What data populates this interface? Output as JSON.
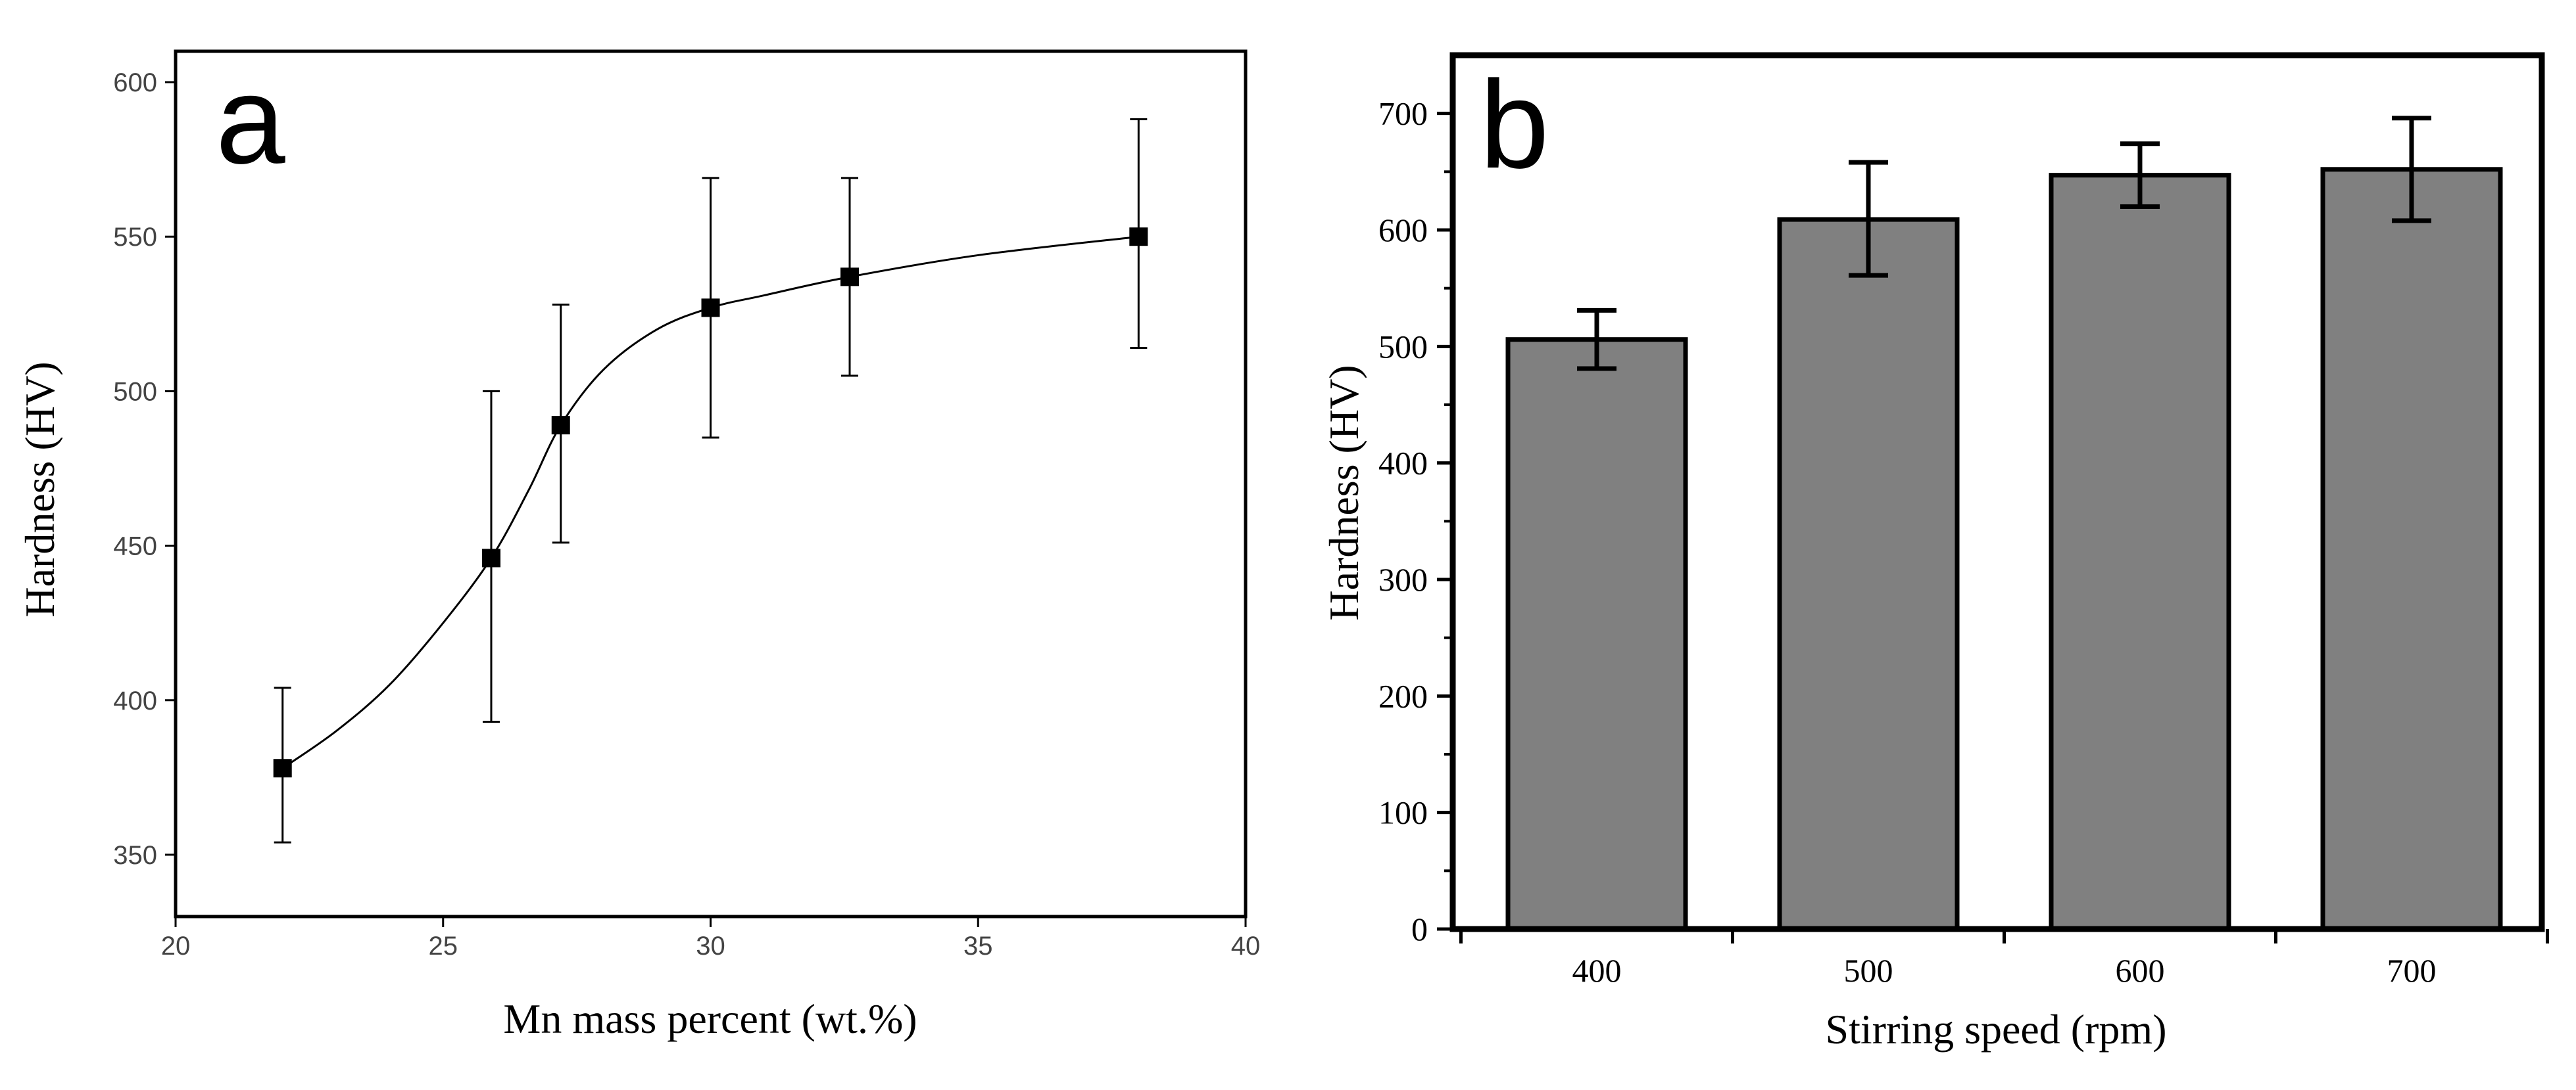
{
  "chart_data": [
    {
      "panel_label": "a",
      "type": "scatter",
      "xlabel": "Mn mass percent (wt.%)",
      "ylabel": "Hardness (HV)",
      "xlim": [
        20,
        40
      ],
      "ylim": [
        330,
        610
      ],
      "xticks": [
        20,
        25,
        30,
        35,
        40
      ],
      "yticks": [
        350,
        400,
        450,
        500,
        550,
        600
      ],
      "grid": false,
      "fitted_curve": true,
      "points": [
        {
          "x": 22.0,
          "y": 378,
          "err_low": 354,
          "err_high": 404
        },
        {
          "x": 25.9,
          "y": 446,
          "err_low": 393,
          "err_high": 500
        },
        {
          "x": 27.2,
          "y": 489,
          "err_low": 451,
          "err_high": 528
        },
        {
          "x": 30.0,
          "y": 527,
          "err_low": 485,
          "err_high": 569
        },
        {
          "x": 32.6,
          "y": 537,
          "err_low": 505,
          "err_high": 569
        },
        {
          "x": 38.0,
          "y": 550,
          "err_low": 514,
          "err_high": 588
        }
      ],
      "curve": [
        {
          "x": 22.0,
          "y": 378
        },
        {
          "x": 23.0,
          "y": 390
        },
        {
          "x": 24.0,
          "y": 405
        },
        {
          "x": 25.0,
          "y": 425
        },
        {
          "x": 25.9,
          "y": 446
        },
        {
          "x": 26.6,
          "y": 468
        },
        {
          "x": 27.2,
          "y": 489
        },
        {
          "x": 28.0,
          "y": 507
        },
        {
          "x": 29.0,
          "y": 520
        },
        {
          "x": 30.0,
          "y": 527
        },
        {
          "x": 31.0,
          "y": 531
        },
        {
          "x": 32.6,
          "y": 537
        },
        {
          "x": 35.0,
          "y": 544
        },
        {
          "x": 38.0,
          "y": 550
        }
      ]
    },
    {
      "panel_label": "b",
      "type": "bar",
      "xlabel": "Stirring speed (rpm)",
      "ylabel": "Hardness (HV)",
      "categories": [
        "400",
        "500",
        "600",
        "700"
      ],
      "values": [
        506,
        609,
        647,
        652
      ],
      "errors": [
        {
          "low": 481,
          "high": 531
        },
        {
          "low": 561,
          "high": 658
        },
        {
          "low": 620,
          "high": 674
        },
        {
          "low": 608,
          "high": 696
        }
      ],
      "ylim": [
        0,
        750
      ],
      "yticks": [
        0,
        100,
        200,
        300,
        400,
        500,
        600,
        700
      ],
      "bar_color": "#808080",
      "grid": false
    }
  ]
}
